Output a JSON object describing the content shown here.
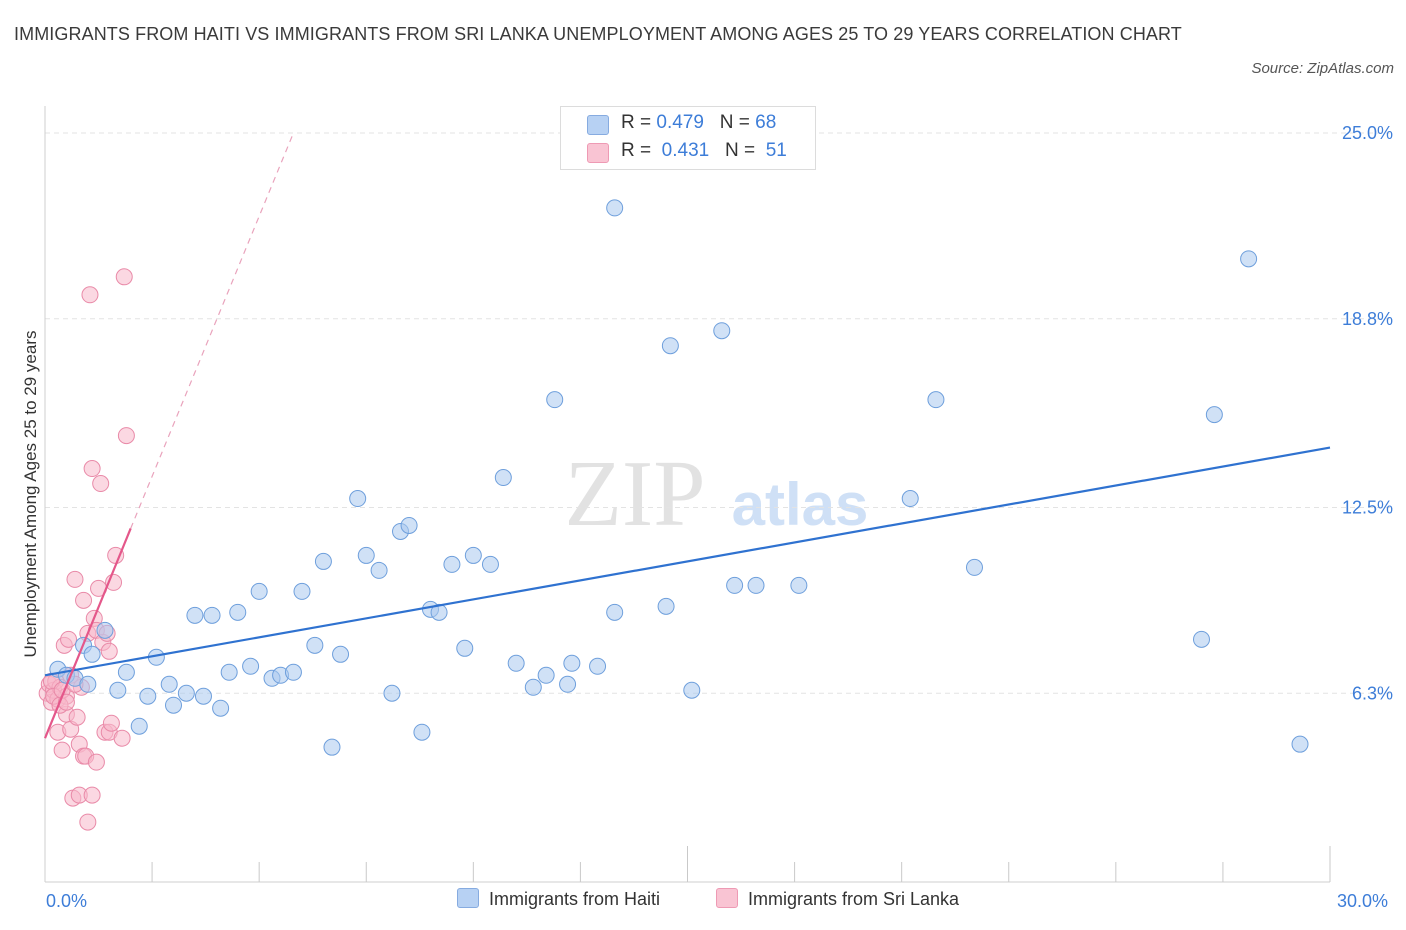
{
  "chart_data": {
    "type": "scatter",
    "title": "IMMIGRANTS FROM HAITI VS IMMIGRANTS FROM SRI LANKA UNEMPLOYMENT AMONG AGES 25 TO 29 YEARS CORRELATION CHART",
    "source": "Source: ZipAtlas.com",
    "ylabel": "Unemployment Among Ages 25 to 29 years",
    "xlabel": "",
    "xlim": [
      0,
      30
    ],
    "ylim": [
      0,
      25
    ],
    "x_tick_labels": [
      "0.0%",
      "30.0%"
    ],
    "y_ticks": [
      {
        "value": 6.3,
        "label": "6.3%"
      },
      {
        "value": 12.5,
        "label": "12.5%"
      },
      {
        "value": 18.8,
        "label": "18.8%"
      },
      {
        "value": 25.0,
        "label": "25.0%"
      }
    ],
    "grid": true,
    "legend_position": "top-center",
    "watermark": "ZIPatlas",
    "series": [
      {
        "name": "Immigrants from Haiti",
        "color": "#a9c8ef",
        "stroke": "#6e9fdc",
        "line_color": "#2f72d0",
        "R": "0.479",
        "N": "68",
        "trend": {
          "x0": 0.0,
          "y0": 6.9,
          "x1": 30.0,
          "y1": 14.5
        },
        "points": [
          [
            0.3,
            7.1
          ],
          [
            0.5,
            6.9
          ],
          [
            0.7,
            6.8
          ],
          [
            0.9,
            7.9
          ],
          [
            1.0,
            6.6
          ],
          [
            1.1,
            7.6
          ],
          [
            1.4,
            8.4
          ],
          [
            1.7,
            6.4
          ],
          [
            1.9,
            7.0
          ],
          [
            2.2,
            5.2
          ],
          [
            2.4,
            6.2
          ],
          [
            2.6,
            7.5
          ],
          [
            2.9,
            6.6
          ],
          [
            3.0,
            5.9
          ],
          [
            3.3,
            6.3
          ],
          [
            3.5,
            8.9
          ],
          [
            3.7,
            6.2
          ],
          [
            3.9,
            8.9
          ],
          [
            4.1,
            5.8
          ],
          [
            4.3,
            7.0
          ],
          [
            4.5,
            9.0
          ],
          [
            4.8,
            7.2
          ],
          [
            5.0,
            9.7
          ],
          [
            5.3,
            6.8
          ],
          [
            5.5,
            6.9
          ],
          [
            5.8,
            7.0
          ],
          [
            6.0,
            9.7
          ],
          [
            6.3,
            7.9
          ],
          [
            6.5,
            10.7
          ],
          [
            6.7,
            4.5
          ],
          [
            6.9,
            7.6
          ],
          [
            7.3,
            12.8
          ],
          [
            7.5,
            10.9
          ],
          [
            7.8,
            10.4
          ],
          [
            8.1,
            6.3
          ],
          [
            8.3,
            11.7
          ],
          [
            8.5,
            11.9
          ],
          [
            8.8,
            5.0
          ],
          [
            9.0,
            9.1
          ],
          [
            9.2,
            9.0
          ],
          [
            9.5,
            10.6
          ],
          [
            9.8,
            7.8
          ],
          [
            10.0,
            10.9
          ],
          [
            10.4,
            10.6
          ],
          [
            10.7,
            13.5
          ],
          [
            11.0,
            7.3
          ],
          [
            11.4,
            6.5
          ],
          [
            11.7,
            6.9
          ],
          [
            11.9,
            16.1
          ],
          [
            12.2,
            6.6
          ],
          [
            12.3,
            7.3
          ],
          [
            12.9,
            7.2
          ],
          [
            13.3,
            9.0
          ],
          [
            13.3,
            22.5
          ],
          [
            14.5,
            9.2
          ],
          [
            14.6,
            17.9
          ],
          [
            15.1,
            6.4
          ],
          [
            15.8,
            18.4
          ],
          [
            16.1,
            9.9
          ],
          [
            16.6,
            9.9
          ],
          [
            17.6,
            9.9
          ],
          [
            20.2,
            12.8
          ],
          [
            20.8,
            16.1
          ],
          [
            21.7,
            10.5
          ],
          [
            27.0,
            8.1
          ],
          [
            27.3,
            15.6
          ],
          [
            28.1,
            20.8
          ],
          [
            29.3,
            4.6
          ]
        ]
      },
      {
        "name": "Immigrants from Sri Lanka",
        "color": "#f7b8ca",
        "stroke": "#e98aa8",
        "line_color": "#e4578a",
        "R": "0.431",
        "N": "51",
        "trend": {
          "x0": 0.0,
          "y0": 4.8,
          "x1": 2.0,
          "y1": 11.8
        },
        "trend_ext": {
          "x0": 2.0,
          "y0": 11.8,
          "x1": 5.8,
          "y1": 25.0
        },
        "points": [
          [
            0.05,
            6.3
          ],
          [
            0.1,
            6.6
          ],
          [
            0.15,
            6.0
          ],
          [
            0.2,
            6.4
          ],
          [
            0.25,
            6.7
          ],
          [
            0.3,
            6.1
          ],
          [
            0.3,
            5.0
          ],
          [
            0.35,
            6.5
          ],
          [
            0.4,
            4.4
          ],
          [
            0.45,
            7.9
          ],
          [
            0.5,
            6.2
          ],
          [
            0.5,
            5.6
          ],
          [
            0.55,
            8.1
          ],
          [
            0.6,
            5.1
          ],
          [
            0.6,
            6.9
          ],
          [
            0.65,
            2.8
          ],
          [
            0.7,
            10.1
          ],
          [
            0.75,
            5.5
          ],
          [
            0.8,
            4.6
          ],
          [
            0.8,
            2.9
          ],
          [
            0.85,
            6.5
          ],
          [
            0.9,
            9.4
          ],
          [
            0.9,
            4.2
          ],
          [
            0.95,
            4.2
          ],
          [
            1.0,
            8.3
          ],
          [
            1.0,
            2.0
          ],
          [
            1.05,
            19.6
          ],
          [
            1.1,
            13.8
          ],
          [
            1.1,
            2.9
          ],
          [
            1.15,
            8.8
          ],
          [
            1.2,
            8.4
          ],
          [
            1.2,
            4.0
          ],
          [
            1.25,
            9.8
          ],
          [
            1.3,
            13.3
          ],
          [
            1.35,
            8.0
          ],
          [
            1.4,
            5.0
          ],
          [
            1.45,
            8.3
          ],
          [
            1.5,
            5.0
          ],
          [
            1.5,
            7.7
          ],
          [
            1.55,
            5.3
          ],
          [
            1.6,
            10.0
          ],
          [
            1.65,
            10.9
          ],
          [
            1.8,
            4.8
          ],
          [
            1.85,
            20.2
          ],
          [
            1.9,
            14.9
          ],
          [
            0.15,
            6.7
          ],
          [
            0.2,
            6.2
          ],
          [
            0.35,
            5.9
          ],
          [
            0.4,
            6.4
          ],
          [
            0.5,
            6.0
          ],
          [
            0.7,
            6.6
          ]
        ]
      }
    ]
  }
}
